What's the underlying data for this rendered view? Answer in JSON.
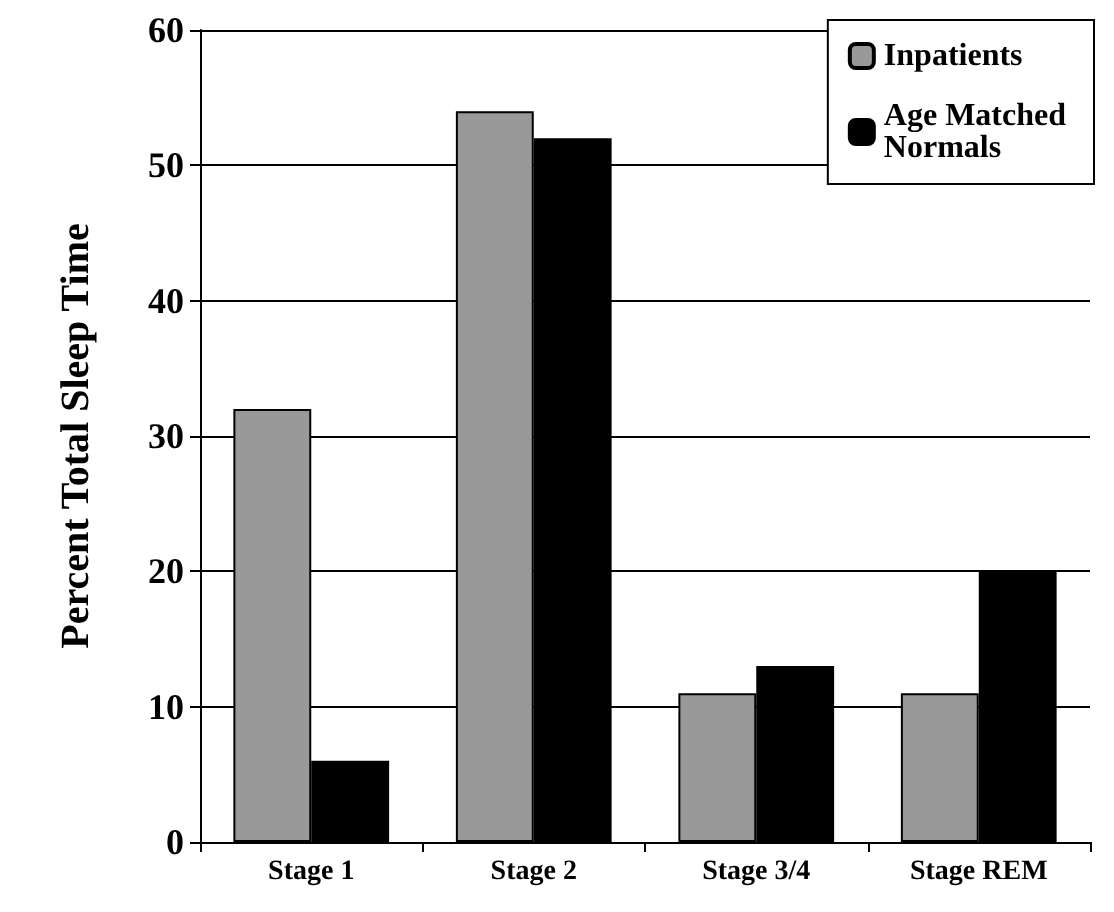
{
  "chart_data": {
    "type": "bar",
    "ylabel": "Percent Total Sleep Time",
    "categories": [
      "Stage 1",
      "Stage 2",
      "Stage 3/4",
      "Stage REM"
    ],
    "series": [
      {
        "name": "Inpatients",
        "color": "#999999",
        "values": [
          32,
          54,
          11,
          11
        ]
      },
      {
        "name": "Age Matched Normals",
        "color": "#000000",
        "values": [
          6,
          52,
          13,
          20
        ]
      }
    ],
    "ylim": [
      0,
      60
    ],
    "yticks": [
      0,
      10,
      20,
      30,
      40,
      50,
      60
    ],
    "grid": "y",
    "legend": "top right"
  }
}
